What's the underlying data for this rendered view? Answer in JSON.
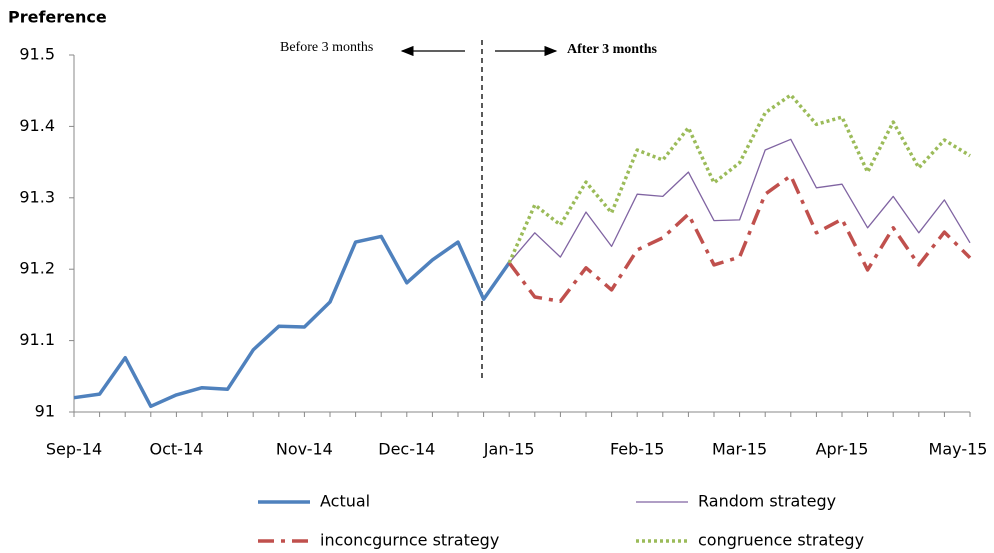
{
  "chart_data": {
    "type": "line",
    "y_label": "Preference",
    "annotations": [
      "Before 3 months",
      "After 3 months"
    ],
    "categories": [
      "Sep-14",
      null,
      null,
      null,
      "Oct-14",
      null,
      null,
      null,
      null,
      "Nov-14",
      null,
      null,
      null,
      "Dec-14",
      null,
      null,
      null,
      "Jan-15",
      null,
      null,
      null,
      null,
      "Feb-15",
      null,
      null,
      null,
      "Mar-15",
      null,
      null,
      null,
      "Apr-15",
      null,
      null,
      null,
      null,
      "May-15"
    ],
    "ylim": [
      91,
      91.5
    ],
    "yticks": [
      91,
      91.1,
      91.2,
      91.3,
      91.4,
      91.5
    ],
    "grid": false,
    "legend": "bottom",
    "series": [
      {
        "name": "Actual",
        "color": "#4f81bd",
        "line_style": "solid",
        "values": [
          91.02,
          91.025,
          91.076,
          91.008,
          91.024,
          91.034,
          91.032,
          91.087,
          91.12,
          91.119,
          91.154,
          91.238,
          91.246,
          91.181,
          91.213,
          91.238,
          91.158,
          91.209,
          null,
          null,
          null,
          null,
          null,
          null,
          null,
          null,
          null,
          null,
          null,
          null,
          null,
          null,
          null,
          null,
          null,
          null
        ]
      },
      {
        "name": "Random strategy",
        "color": "#8064a2",
        "line_style": "thin",
        "values": [
          null,
          null,
          null,
          null,
          null,
          null,
          null,
          null,
          null,
          null,
          null,
          null,
          null,
          null,
          null,
          null,
          null,
          91.209,
          91.251,
          91.217,
          91.28,
          91.232,
          91.305,
          91.302,
          91.336,
          91.268,
          91.269,
          91.367,
          91.382,
          91.314,
          91.319,
          91.258,
          91.302,
          91.251,
          91.297,
          91.237
        ]
      },
      {
        "name": "inconcgurnce strategy",
        "color": "#c0504d",
        "line_style": "dashdot",
        "values": [
          null,
          null,
          null,
          null,
          null,
          null,
          null,
          null,
          null,
          null,
          null,
          null,
          null,
          null,
          null,
          null,
          null,
          91.209,
          91.161,
          91.155,
          91.202,
          91.171,
          91.227,
          91.244,
          91.277,
          91.206,
          91.217,
          91.305,
          91.331,
          91.251,
          91.27,
          91.199,
          91.258,
          91.206,
          91.252,
          91.216
        ]
      },
      {
        "name": "congruence strategy",
        "color": "#9bbb59",
        "line_style": "dotted",
        "values": [
          null,
          null,
          null,
          null,
          null,
          null,
          null,
          null,
          null,
          null,
          null,
          null,
          null,
          null,
          null,
          null,
          null,
          91.209,
          91.29,
          91.262,
          91.322,
          91.279,
          91.367,
          91.353,
          91.398,
          91.321,
          91.349,
          91.419,
          91.444,
          91.403,
          91.413,
          91.336,
          91.406,
          91.342,
          91.381,
          91.359
        ]
      }
    ]
  }
}
